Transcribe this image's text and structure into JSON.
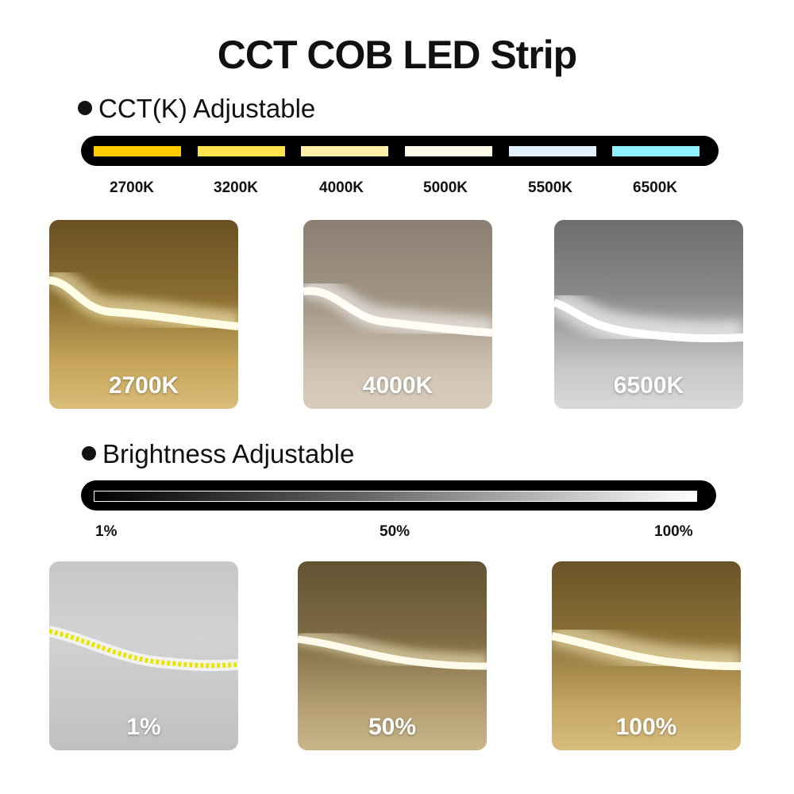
{
  "title": "CCT COB LED Strip",
  "cct_section": {
    "heading": "CCT(K) Adjustable",
    "scale": [
      {
        "label": "2700K",
        "color": "#ffcc00"
      },
      {
        "label": "3200K",
        "color": "#ffe54d"
      },
      {
        "label": "4000K",
        "color": "#fff0a8"
      },
      {
        "label": "5000K",
        "color": "#fffbea"
      },
      {
        "label": "5500K",
        "color": "#e3f1ff"
      },
      {
        "label": "6500K",
        "color": "#8ff0ff"
      }
    ],
    "photos": [
      {
        "label": "2700K"
      },
      {
        "label": "4000K"
      },
      {
        "label": "6500K"
      }
    ]
  },
  "brightness_section": {
    "heading": "Brightness Adjustable",
    "scale_labels": [
      "1%",
      "50%",
      "100%"
    ],
    "photos": [
      {
        "label": "1%"
      },
      {
        "label": "50%"
      },
      {
        "label": "100%"
      }
    ]
  }
}
